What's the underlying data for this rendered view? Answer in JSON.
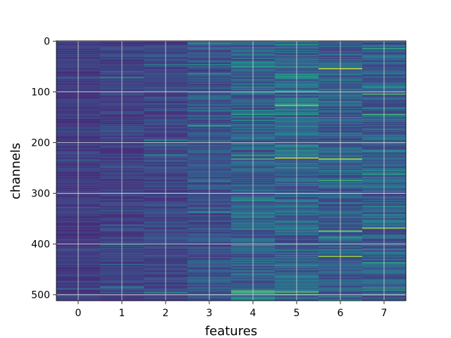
{
  "chart_data": {
    "type": "heatmap",
    "title": "",
    "xlabel": "features",
    "ylabel": "channels",
    "x_ticks": [
      0,
      1,
      2,
      3,
      4,
      5,
      6,
      7
    ],
    "y_ticks": [
      0,
      100,
      200,
      300,
      400,
      500
    ],
    "n_features": 8,
    "n_channels": 512,
    "xlim": [
      -0.5,
      7.5
    ],
    "ylim": [
      511.5,
      -0.5
    ],
    "y_axis_inverted": true,
    "grid": true,
    "colormap": "viridis",
    "legend": "none",
    "column_mean_intensity": [
      0.18,
      0.2,
      0.22,
      0.26,
      0.3,
      0.33,
      0.3,
      0.3
    ],
    "column_variability": [
      0.06,
      0.07,
      0.08,
      0.1,
      0.13,
      0.14,
      0.13,
      0.12
    ],
    "notable_bright_rows": [
      {
        "feature": 3,
        "channel": 5,
        "value": 0.55
      },
      {
        "feature": 4,
        "channel": 232,
        "value": 0.7
      },
      {
        "feature": 4,
        "channel": 493,
        "value": 0.75
      },
      {
        "feature": 4,
        "channel": 497,
        "value": 0.72
      },
      {
        "feature": 5,
        "channel": 127,
        "value": 0.82
      },
      {
        "feature": 5,
        "channel": 230,
        "value": 0.92
      },
      {
        "feature": 5,
        "channel": 494,
        "value": 0.75
      },
      {
        "feature": 6,
        "channel": 55,
        "value": 0.95
      },
      {
        "feature": 6,
        "channel": 233,
        "value": 0.92
      },
      {
        "feature": 6,
        "channel": 375,
        "value": 0.8
      },
      {
        "feature": 6,
        "channel": 425,
        "value": 0.85
      },
      {
        "feature": 7,
        "channel": 105,
        "value": 0.72
      },
      {
        "feature": 7,
        "channel": 145,
        "value": 0.7
      },
      {
        "feature": 7,
        "channel": 262,
        "value": 0.6
      },
      {
        "feature": 7,
        "channel": 368,
        "value": 0.85
      },
      {
        "feature": 7,
        "channel": 437,
        "value": 0.62
      }
    ],
    "colors": {
      "low": "#3b4d8e",
      "mid": "#2c8a8c",
      "high": "#e4e61a",
      "grid": "#d8d8d8",
      "axis": "#000000"
    }
  }
}
